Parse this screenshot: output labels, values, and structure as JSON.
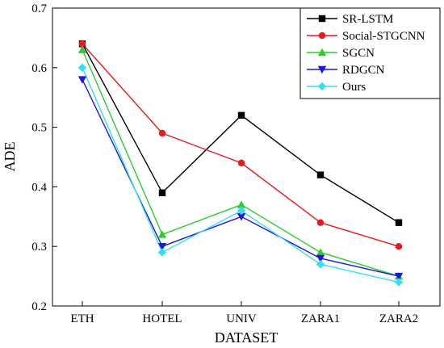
{
  "chart_data": {
    "type": "line",
    "categories": [
      "ETH",
      "HOTEL",
      "UNIV",
      "ZARA1",
      "ZARA2"
    ],
    "xlabel": "DATASET",
    "ylabel": "ADE",
    "ylim": [
      0.2,
      0.7
    ],
    "yticks": [
      "0.2",
      "0.3",
      "0.4",
      "0.5",
      "0.6",
      "0.7"
    ],
    "grid": false,
    "legend_position": "top-right",
    "series": [
      {
        "name": "SR-LSTM",
        "color": "#000000",
        "marker": "square",
        "values": [
          0.64,
          0.39,
          0.52,
          0.42,
          0.34
        ]
      },
      {
        "name": "Social-STGCNN",
        "color": "#e8191c",
        "marker": "circle",
        "values": [
          0.64,
          0.49,
          0.44,
          0.34,
          0.3
        ]
      },
      {
        "name": "SGCN",
        "color": "#2ecc2e",
        "marker": "triangle-up",
        "values": [
          0.63,
          0.32,
          0.37,
          0.29,
          0.25
        ]
      },
      {
        "name": "RDGCN",
        "color": "#1a1ad9",
        "marker": "triangle-down",
        "values": [
          0.58,
          0.3,
          0.35,
          0.28,
          0.25
        ]
      },
      {
        "name": "Ours",
        "color": "#33e0f0",
        "marker": "diamond",
        "values": [
          0.6,
          0.29,
          0.36,
          0.27,
          0.24
        ]
      }
    ]
  }
}
